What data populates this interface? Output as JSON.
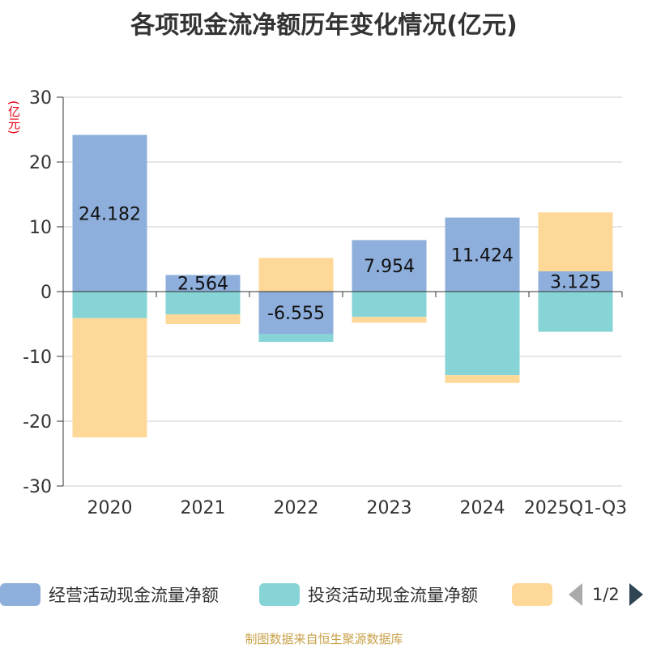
{
  "title": "各项现金流净额历年变化情况(亿元)",
  "unit_label": "(亿元)",
  "source": "制图数据来自恒生聚源数据库",
  "legend": {
    "items": [
      {
        "label": "经营活动现金流量净额",
        "color": "#8eaedb"
      },
      {
        "label": "投资活动现金流量净额",
        "color": "#86d4d6"
      },
      {
        "label": "",
        "color": "#fdd899"
      }
    ],
    "page": "1/2"
  },
  "chart_data": {
    "type": "bar",
    "stacked": true,
    "categories": [
      "2020",
      "2021",
      "2022",
      "2023",
      "2024",
      "2025Q1-Q3"
    ],
    "ylim": [
      -30,
      30
    ],
    "yticks": [
      30,
      20,
      10,
      0,
      -10,
      -20,
      -30
    ],
    "grid": true,
    "legend_position": "bottom",
    "series": [
      {
        "name": "经营活动现金流量净额",
        "color": "#8eaedb",
        "values": [
          24.182,
          2.564,
          -6.555,
          7.954,
          11.424,
          3.125
        ]
      },
      {
        "name": "投资活动现金流量净额",
        "color": "#86d4d6",
        "values": [
          -4.1,
          -3.5,
          -1.2,
          -3.9,
          -12.9,
          -6.2
        ]
      },
      {
        "color": "#fdd899",
        "values": [
          -18.4,
          -1.5,
          5.2,
          -0.9,
          -1.2,
          9.1
        ]
      }
    ],
    "data_labels": [
      "24.182",
      "2.564",
      "-6.555",
      "7.954",
      "11.424",
      "3.125"
    ]
  }
}
